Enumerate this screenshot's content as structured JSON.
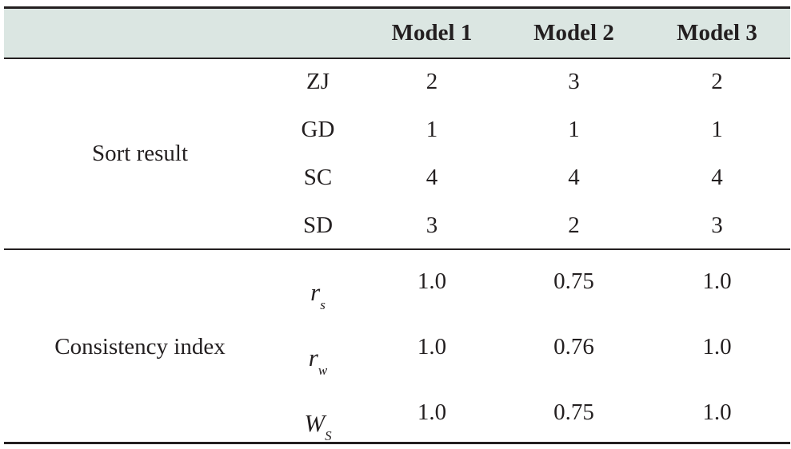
{
  "table": {
    "headers": [
      "",
      "",
      "Model 1",
      "Model 2",
      "Model 3"
    ],
    "groups": [
      {
        "label": "Sort result",
        "rows": [
          {
            "item": "ZJ",
            "values": [
              "2",
              "3",
              "2"
            ]
          },
          {
            "item": "GD",
            "values": [
              "1",
              "1",
              "1"
            ]
          },
          {
            "item": "SC",
            "values": [
              "4",
              "4",
              "4"
            ]
          },
          {
            "item": "SD",
            "values": [
              "3",
              "2",
              "3"
            ]
          }
        ]
      },
      {
        "label": "Consistency index",
        "rows": [
          {
            "symbol": "r",
            "subscript": "s",
            "values": [
              "1.0",
              "0.75",
              "1.0"
            ]
          },
          {
            "symbol": "r",
            "subscript": "w",
            "values": [
              "1.0",
              "0.76",
              "1.0"
            ]
          },
          {
            "symbol": "W",
            "subscript": "S",
            "values": [
              "1.0",
              "0.75",
              "1.0"
            ]
          }
        ]
      }
    ]
  },
  "colors": {
    "header_background": "#dbe6e2",
    "text": "#231f20",
    "rules": "#231f20"
  }
}
